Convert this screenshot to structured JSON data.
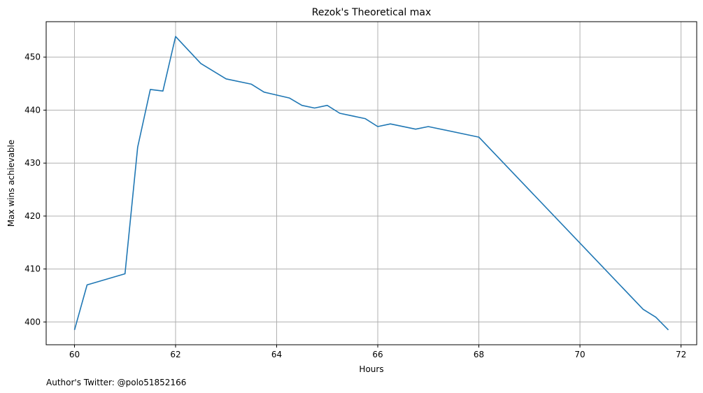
{
  "chart_data": {
    "type": "line",
    "title": "Rezok's Theoretical max",
    "xlabel": "Hours",
    "ylabel": "Max wins achievable",
    "xlim": [
      59.44,
      72.31
    ],
    "ylim": [
      395.7,
      456.7
    ],
    "xticks": [
      60,
      62,
      64,
      66,
      68,
      70,
      72
    ],
    "yticks": [
      400,
      410,
      420,
      430,
      440,
      450
    ],
    "grid": true,
    "line_color": "#1f77b4",
    "grid_color": "#b0b0b0",
    "series": [
      {
        "x": [
          60.0,
          60.25,
          61.0,
          61.25,
          61.5,
          61.75,
          62.0,
          62.5,
          63.0,
          63.5,
          63.75,
          64.25,
          64.5,
          64.75,
          65.0,
          65.25,
          65.75,
          66.0,
          66.25,
          66.75,
          67.0,
          68.0,
          71.25,
          71.5,
          71.75
        ],
        "y": [
          398.5,
          407.0,
          409.1,
          433.0,
          443.9,
          443.6,
          453.9,
          448.8,
          445.9,
          444.9,
          443.4,
          442.3,
          440.9,
          440.4,
          440.9,
          439.4,
          438.4,
          436.9,
          437.4,
          436.4,
          436.9,
          434.9,
          402.4,
          400.9,
          398.5
        ]
      }
    ]
  },
  "footer": {
    "text": "Author's Twitter: @polo51852166"
  }
}
